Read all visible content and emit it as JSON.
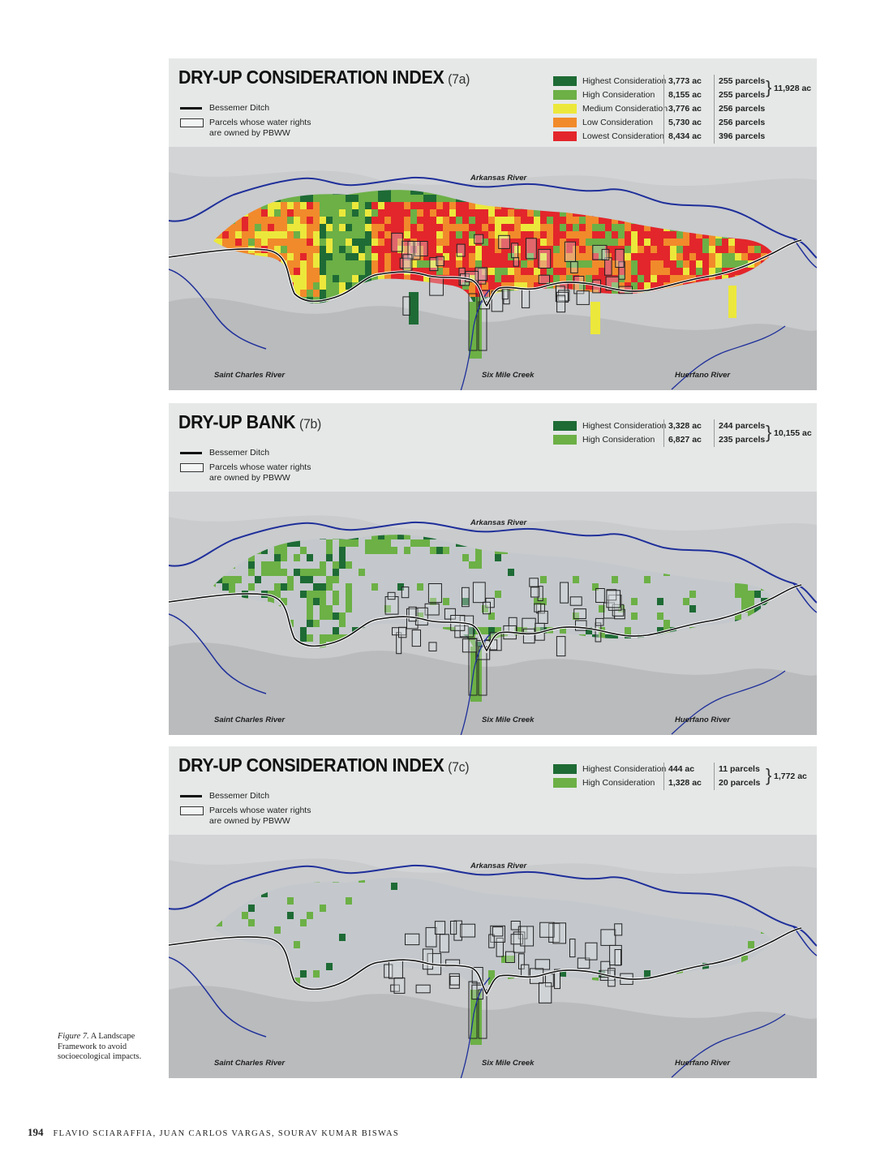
{
  "colors": {
    "highest": "#1e6b35",
    "high": "#6cb046",
    "medium": "#ece83b",
    "low": "#f18a2b",
    "lowest": "#e3262b",
    "river": "#1f2f9a",
    "ditch": "#111111",
    "terrain": "#c9cbcd",
    "header_band": "#e8e9ea"
  },
  "common_labels": {
    "ditch_key": "Bessemer Ditch",
    "parcel_key_line1": "Parcels whose water rights",
    "parcel_key_line2": "are owned by PBWW",
    "arkansas_river": "Arkansas River",
    "saint_charles_river": "Saint Charles River",
    "six_mile_creek": "Six Mile Creek",
    "huerfano_river": "Huerfano River"
  },
  "panels": [
    {
      "id": "7a",
      "title": "DRY-UP CONSIDERATION INDEX",
      "code": "(7a)",
      "legend": [
        {
          "label": "Highest Consideration",
          "acres": "3,773 ac",
          "parcels": "255 parcels",
          "color": "#1e6b35"
        },
        {
          "label": "High Consideration",
          "acres": "8,155 ac",
          "parcels": "255 parcels",
          "color": "#6cb046"
        },
        {
          "label": "Medium Consideration",
          "acres": "3,776 ac",
          "parcels": "256 parcels",
          "color": "#ece83b"
        },
        {
          "label": "Low Consideration",
          "acres": "5,730 ac",
          "parcels": "256 parcels",
          "color": "#f18a2b"
        },
        {
          "label": "Lowest Consideration",
          "acres": "8,434 ac",
          "parcels": "396 parcels",
          "color": "#e3262b"
        }
      ],
      "total": "11,928 ac",
      "total_spans": 2
    },
    {
      "id": "7b",
      "title": "DRY-UP BANK",
      "code": "(7b)",
      "legend": [
        {
          "label": "Highest Consideration",
          "acres": "3,328 ac",
          "parcels": "244 parcels",
          "color": "#1e6b35"
        },
        {
          "label": "High Consideration",
          "acres": "6,827 ac",
          "parcels": "235 parcels",
          "color": "#6cb046"
        }
      ],
      "total": "10,155 ac",
      "total_spans": 2
    },
    {
      "id": "7c",
      "title": "DRY-UP CONSIDERATION INDEX",
      "code": "(7c)",
      "legend": [
        {
          "label": "Highest Consideration",
          "acres": "444 ac",
          "parcels": "11 parcels",
          "color": "#1e6b35"
        },
        {
          "label": "High Consideration",
          "acres": "1,328 ac",
          "parcels": "20 parcels",
          "color": "#6cb046"
        }
      ],
      "total": "1,772 ac",
      "total_spans": 2
    }
  ],
  "caption": {
    "figure": "Figure 7.",
    "text": "A Landscape Framework to avoid socioecological impacts."
  },
  "footer": {
    "page_number": "194",
    "authors": "FLAVIO SCIARAFFIA, JUAN CARLOS VARGAS, SOURAV KUMAR BISWAS"
  }
}
